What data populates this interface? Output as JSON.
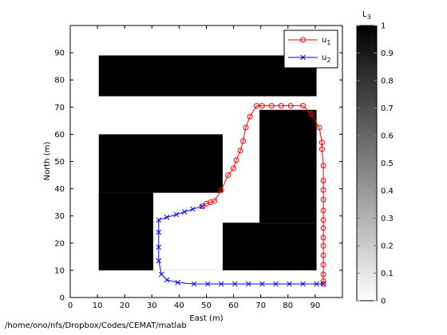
{
  "footer_path": "/home/ono/nfs/Dropbox/Codes/CEMAT/matlab",
  "chart_data": [
    {
      "type": "line",
      "title": "",
      "xlabel": "East (m)",
      "ylabel": "North (m)",
      "xlim": [
        0,
        100
      ],
      "ylim": [
        0,
        100
      ],
      "xticks": [
        0,
        10,
        20,
        30,
        40,
        50,
        60,
        70,
        80,
        90
      ],
      "yticks": [
        0,
        10,
        20,
        30,
        40,
        50,
        60,
        70,
        80,
        90
      ],
      "grid": false,
      "legend": {
        "placement": "top-right",
        "entries": [
          "u",
          "u"
        ],
        "subscripts": [
          "1",
          "2"
        ]
      },
      "obstacles": [
        {
          "label": "top-bar",
          "x": [
            10.5,
            90.5
          ],
          "y": [
            74,
            89
          ]
        },
        {
          "label": "left-block",
          "x": [
            10.5,
            56
          ],
          "y": [
            10,
            38.5
          ]
        },
        {
          "label": "left-block-top",
          "x": [
            10.5,
            56
          ],
          "y": [
            38.5,
            60
          ]
        },
        {
          "label": "inner-notch-fill",
          "x": [
            10.5,
            30.5
          ],
          "y": [
            38.5,
            38.5
          ]
        },
        {
          "label": "right-upper",
          "x": [
            69.5,
            90.5
          ],
          "y": [
            27.5,
            69
          ]
        },
        {
          "label": "right-lower",
          "x": [
            34.5,
            90.5
          ],
          "y": [
            10,
            27.5
          ]
        }
      ],
      "series": [
        {
          "name": "u1",
          "color": "#ff0000",
          "marker": "circle",
          "x": [
            48.5,
            50,
            51.5,
            53,
            55.5,
            58,
            60,
            61,
            62.5,
            63.5,
            64.5,
            66,
            68.5,
            70.5,
            74,
            77.5,
            81,
            85.5,
            88.5,
            91.5,
            92.5,
            92.5,
            93,
            93,
            93,
            93,
            93,
            93,
            93,
            93,
            93,
            93,
            93,
            93,
            93,
            93
          ],
          "y": [
            33.5,
            34.5,
            35,
            35.5,
            39.5,
            45,
            47.5,
            50.5,
            54,
            57.5,
            62.5,
            66.5,
            70.5,
            70.5,
            70.5,
            70.5,
            70.5,
            70.5,
            67.5,
            62.5,
            57,
            54.5,
            48.5,
            43,
            39.5,
            36,
            32,
            28.5,
            25.5,
            22,
            19,
            15.5,
            12,
            8.5,
            6,
            5
          ]
        },
        {
          "name": "u2",
          "color": "#0000ff",
          "marker": "x",
          "x": [
            48.5,
            45,
            42,
            39,
            35.5,
            32.5,
            32.5,
            32.5,
            32.5,
            33.5,
            35.5,
            39.5,
            45.5,
            50.5,
            55.5,
            60.5,
            65.5,
            70.5,
            75.5,
            80.5,
            85.5,
            90.5,
            93
          ],
          "y": [
            33.5,
            32.5,
            31.5,
            30.5,
            29.5,
            28.5,
            24,
            18.5,
            13.5,
            8.5,
            6.5,
            5.5,
            5,
            5,
            5,
            5,
            5,
            5,
            5,
            5,
            5,
            5,
            5
          ]
        }
      ]
    },
    {
      "type": "heatmap",
      "title": "L",
      "title_subscript": "3",
      "colormap": "gray-reversed",
      "ylim": [
        0,
        1
      ],
      "tick_labels": [
        "0",
        "0.1",
        "0.2",
        "0.3",
        "0.4",
        "0.5",
        "0.6",
        "0.7",
        "0.8",
        "0.9",
        "1"
      ]
    }
  ]
}
